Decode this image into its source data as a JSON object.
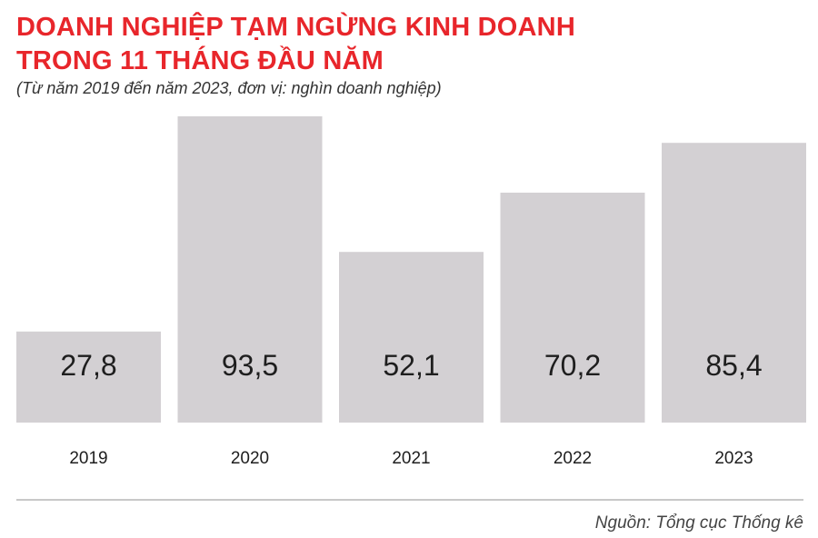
{
  "title_lines": [
    "DOANH NGHIỆP TẠM NGỪNG KINH DOANH",
    "TRONG 11 THÁNG ĐẦU NĂM"
  ],
  "subtitle": "(Từ năm 2019 đến năm 2023, đơn vị: nghìn doanh nghiệp)",
  "source": "Nguồn: Tổng cục Thống kê",
  "colors": {
    "title": "#e8262b",
    "bar": "#d3d0d3",
    "text": "#1e1e1e"
  },
  "chart_data": {
    "type": "bar",
    "categories": [
      "2019",
      "2020",
      "2021",
      "2022",
      "2023"
    ],
    "values": [
      27.8,
      93.5,
      52.1,
      70.2,
      85.4
    ],
    "value_labels": [
      "27,8",
      "93,5",
      "52,1",
      "70,2",
      "85,4"
    ],
    "title": "DOANH NGHIỆP TẠM NGỪNG KINH DOANH TRONG 11 THÁNG ĐẦU NĂM",
    "subtitle": "(Từ năm 2019 đến năm 2023, đơn vị: nghìn doanh nghiệp)",
    "xlabel": "",
    "ylabel": "",
    "ylim": [
      0,
      93.5
    ],
    "grid": false,
    "legend": "none"
  }
}
